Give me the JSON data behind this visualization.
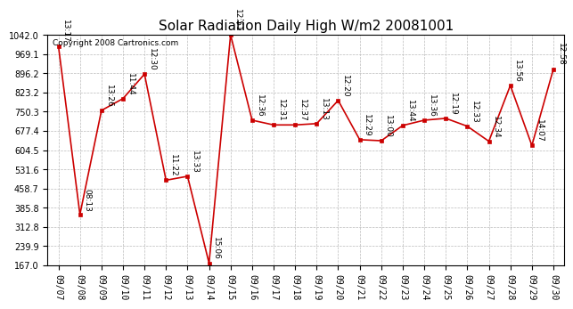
{
  "title": "Solar Radiation Daily High W/m2 20081001",
  "copyright": "Copyright 2008 Cartronics.com",
  "x_labels": [
    "09/07",
    "09/08",
    "09/09",
    "09/10",
    "09/11",
    "09/12",
    "09/13",
    "09/14",
    "09/15",
    "09/16",
    "09/17",
    "09/18",
    "09/19",
    "09/20",
    "09/21",
    "09/22",
    "09/23",
    "09/24",
    "09/25",
    "09/26",
    "09/27",
    "09/28",
    "09/29",
    "09/30"
  ],
  "y_values": [
    1000,
    360,
    755,
    800,
    893,
    490,
    505,
    175,
    1042,
    718,
    700,
    700,
    705,
    793,
    644,
    640,
    698,
    718,
    725,
    695,
    638,
    850,
    622,
    912
  ],
  "time_labels": [
    "13:17",
    "08:13",
    "13:26",
    "11:44",
    "12:30",
    "11:22",
    "13:33",
    "15:06",
    "12:51",
    "12:36",
    "12:31",
    "12:37",
    "13:13",
    "12:20",
    "12:29",
    "13:00",
    "13:44",
    "13:36",
    "12:19",
    "12:33",
    "12:34",
    "13:56",
    "14:07",
    "12:58"
  ],
  "y_ticks": [
    167.0,
    239.9,
    312.8,
    385.8,
    458.7,
    531.6,
    604.5,
    677.4,
    750.3,
    823.2,
    896.2,
    969.1,
    1042.0
  ],
  "line_color": "#CC0000",
  "marker_color": "#CC0000",
  "bg_color": "#FFFFFF",
  "grid_color": "#BBBBBB",
  "title_fontsize": 11,
  "label_fontsize": 6.5,
  "tick_fontsize": 7,
  "copyright_fontsize": 6.5
}
